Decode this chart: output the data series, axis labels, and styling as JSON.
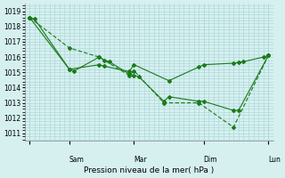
{
  "background_color": "#d6f0f0",
  "grid_color": "#b0d8d8",
  "line_color": "#1a7a1a",
  "title": "Pression niveau de la mer( hPa )",
  "ylabel": "",
  "ylim": [
    1010.5,
    1019.5
  ],
  "yticks": [
    1011,
    1012,
    1013,
    1014,
    1015,
    1016,
    1017,
    1018,
    1019
  ],
  "day_ticks_x": [
    0,
    8,
    21,
    35,
    48
  ],
  "day_labels": [
    "Sam",
    "Mar",
    "Dim",
    "Lun"
  ],
  "series1": {
    "x": [
      0,
      1,
      8,
      9,
      14,
      15,
      16,
      20,
      21,
      22,
      27,
      28,
      34,
      35,
      41,
      42,
      48
    ],
    "y": [
      1018.6,
      1018.5,
      1015.2,
      1015.1,
      1016.0,
      1015.8,
      1015.7,
      1014.9,
      1014.8,
      1014.7,
      1013.1,
      1013.4,
      1013.1,
      1013.1,
      1012.5,
      1012.5,
      1016.1
    ]
  },
  "series2": {
    "x": [
      0,
      8,
      14,
      20,
      21,
      27,
      34,
      41,
      48
    ],
    "y": [
      1018.6,
      1016.6,
      1016.0,
      1014.8,
      1015.1,
      1013.0,
      1013.0,
      1011.4,
      1016.1
    ]
  },
  "series3": {
    "x": [
      0,
      8,
      14,
      15,
      20,
      21,
      28,
      34,
      35,
      41,
      42,
      43,
      47,
      48
    ],
    "y": [
      1018.6,
      1015.2,
      1015.5,
      1015.4,
      1015.05,
      1015.5,
      1014.45,
      1015.35,
      1015.5,
      1015.6,
      1015.65,
      1015.7,
      1016.0,
      1016.1
    ]
  }
}
